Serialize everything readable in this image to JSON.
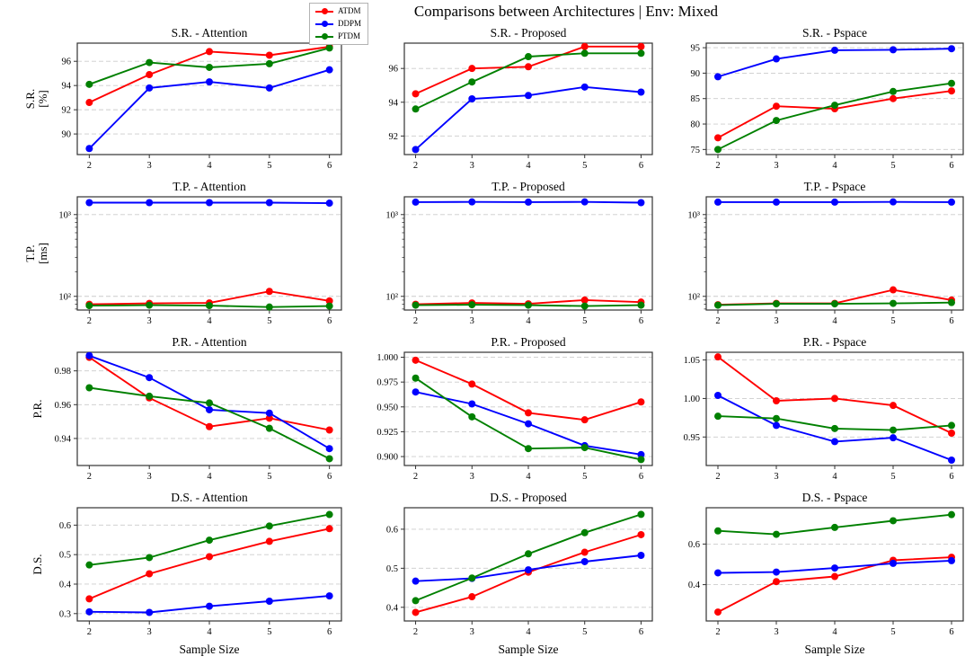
{
  "page": {
    "title": "Comparisons between Architectures | Env: Mixed"
  },
  "legend": {
    "position": "top-left-of-title",
    "items": [
      {
        "label": "ATDM",
        "color": "#ff0000"
      },
      {
        "label": "DDPM",
        "color": "#0000ff"
      },
      {
        "label": "PTDM",
        "color": "#008000"
      }
    ]
  },
  "style_colors": {
    "gridline": "#cccccc",
    "spine": "#333333",
    "background": "#ffffff"
  },
  "chart_data": [
    {
      "id": "sr-attention",
      "type": "line",
      "title": "S.R. - Attention",
      "row": 0,
      "col": 0,
      "ylabel_lines": [
        "S.R.",
        "[%]"
      ],
      "x": [
        2,
        3,
        4,
        5,
        6
      ],
      "x_tick_labels": [
        "2",
        "3",
        "4",
        "5",
        "6"
      ],
      "xlim": [
        1.8,
        6.2
      ],
      "ylog": false,
      "ylim": [
        88.3,
        97.5
      ],
      "grid": true,
      "yticks": [
        {
          "v": 90,
          "label": "90"
        },
        {
          "v": 92,
          "label": "92"
        },
        {
          "v": 94,
          "label": "94"
        },
        {
          "v": 96,
          "label": "96"
        }
      ],
      "series": [
        {
          "name": "ATDM",
          "values": [
            92.6,
            94.9,
            96.8,
            96.5,
            97.2
          ]
        },
        {
          "name": "DDPM",
          "values": [
            88.8,
            93.8,
            94.3,
            93.8,
            95.3
          ]
        },
        {
          "name": "PTDM",
          "values": [
            94.1,
            95.9,
            95.5,
            95.8,
            97.1
          ]
        }
      ]
    },
    {
      "id": "sr-proposed",
      "type": "line",
      "title": "S.R. - Proposed",
      "row": 0,
      "col": 1,
      "ylabel_lines": [],
      "x": [
        2,
        3,
        4,
        5,
        6
      ],
      "x_tick_labels": [
        "2",
        "3",
        "4",
        "5",
        "6"
      ],
      "xlim": [
        1.8,
        6.2
      ],
      "ylog": false,
      "ylim": [
        90.9,
        97.5
      ],
      "grid": true,
      "yticks": [
        {
          "v": 92,
          "label": "92"
        },
        {
          "v": 94,
          "label": "94"
        },
        {
          "v": 96,
          "label": "96"
        }
      ],
      "series": [
        {
          "name": "ATDM",
          "values": [
            94.5,
            96.0,
            96.1,
            97.3,
            97.3
          ]
        },
        {
          "name": "DDPM",
          "values": [
            91.2,
            94.2,
            94.4,
            94.9,
            94.6
          ]
        },
        {
          "name": "PTDM",
          "values": [
            93.6,
            95.2,
            96.7,
            96.9,
            96.9
          ]
        }
      ]
    },
    {
      "id": "sr-pspace",
      "type": "line",
      "title": "S.R. - Pspace",
      "row": 0,
      "col": 2,
      "ylabel_lines": [],
      "x": [
        2,
        3,
        4,
        5,
        6
      ],
      "x_tick_labels": [
        "2",
        "3",
        "4",
        "5",
        "6"
      ],
      "xlim": [
        1.8,
        6.2
      ],
      "ylog": false,
      "ylim": [
        74.0,
        95.9
      ],
      "grid": true,
      "yticks": [
        {
          "v": 75,
          "label": "75"
        },
        {
          "v": 80,
          "label": "80"
        },
        {
          "v": 85,
          "label": "85"
        },
        {
          "v": 90,
          "label": "90"
        },
        {
          "v": 95,
          "label": "95"
        }
      ],
      "series": [
        {
          "name": "ATDM",
          "values": [
            77.3,
            83.5,
            83.0,
            85.0,
            86.5
          ]
        },
        {
          "name": "DDPM",
          "values": [
            89.3,
            92.8,
            94.5,
            94.6,
            94.8
          ]
        },
        {
          "name": "PTDM",
          "values": [
            75.0,
            80.7,
            83.7,
            86.4,
            88.0
          ]
        }
      ]
    },
    {
      "id": "tp-attention",
      "type": "line",
      "title": "T.P. - Attention",
      "row": 1,
      "col": 0,
      "ylabel_lines": [
        "T.P.",
        "[ms]"
      ],
      "x": [
        2,
        3,
        4,
        5,
        6
      ],
      "x_tick_labels": [
        "2",
        "3",
        "4",
        "5",
        "6"
      ],
      "xlim": [
        1.8,
        6.2
      ],
      "ylog": true,
      "ylim": [
        68,
        1650
      ],
      "grid": true,
      "yticks": [
        {
          "v": 100,
          "label": "10²"
        },
        {
          "v": 1000,
          "label": "10³"
        }
      ],
      "minor_yticks": [
        70,
        80,
        90,
        200,
        300,
        400,
        500,
        600,
        700,
        800,
        900
      ],
      "series": [
        {
          "name": "ATDM",
          "values": [
            80,
            82,
            83,
            115,
            88
          ]
        },
        {
          "name": "DDPM",
          "values": [
            1400,
            1400,
            1400,
            1400,
            1380
          ]
        },
        {
          "name": "PTDM",
          "values": [
            77,
            78,
            77,
            74,
            76
          ]
        }
      ]
    },
    {
      "id": "tp-proposed",
      "type": "line",
      "title": "T.P. - Proposed",
      "row": 1,
      "col": 1,
      "ylabel_lines": [],
      "x": [
        2,
        3,
        4,
        5,
        6
      ],
      "x_tick_labels": [
        "2",
        "3",
        "4",
        "5",
        "6"
      ],
      "xlim": [
        1.8,
        6.2
      ],
      "ylog": true,
      "ylim": [
        68,
        1650
      ],
      "grid": true,
      "yticks": [
        {
          "v": 100,
          "label": "10²"
        },
        {
          "v": 1000,
          "label": "10³"
        }
      ],
      "minor_yticks": [
        70,
        80,
        90,
        200,
        300,
        400,
        500,
        600,
        700,
        800,
        900
      ],
      "series": [
        {
          "name": "ATDM",
          "values": [
            80,
            83,
            81,
            90,
            85
          ]
        },
        {
          "name": "DDPM",
          "values": [
            1420,
            1430,
            1420,
            1430,
            1400
          ]
        },
        {
          "name": "PTDM",
          "values": [
            78,
            79,
            78,
            76,
            78
          ]
        }
      ]
    },
    {
      "id": "tp-pspace",
      "type": "line",
      "title": "T.P. - Pspace",
      "row": 1,
      "col": 2,
      "ylabel_lines": [],
      "x": [
        2,
        3,
        4,
        5,
        6
      ],
      "x_tick_labels": [
        "2",
        "3",
        "4",
        "5",
        "6"
      ],
      "xlim": [
        1.8,
        6.2
      ],
      "ylog": true,
      "ylim": [
        68,
        1650
      ],
      "grid": true,
      "yticks": [
        {
          "v": 100,
          "label": "10²"
        },
        {
          "v": 1000,
          "label": "10³"
        }
      ],
      "minor_yticks": [
        70,
        80,
        90,
        200,
        300,
        400,
        500,
        600,
        700,
        800,
        900
      ],
      "series": [
        {
          "name": "ATDM",
          "values": [
            79,
            82,
            82,
            120,
            90
          ]
        },
        {
          "name": "DDPM",
          "values": [
            1420,
            1420,
            1420,
            1430,
            1420
          ]
        },
        {
          "name": "PTDM",
          "values": [
            78,
            81,
            81,
            82,
            84
          ]
        }
      ]
    },
    {
      "id": "pr-attention",
      "type": "line",
      "title": "P.R. - Attention",
      "row": 2,
      "col": 0,
      "ylabel_lines": [
        "P.R."
      ],
      "x": [
        2,
        3,
        4,
        5,
        6
      ],
      "x_tick_labels": [
        "2",
        "3",
        "4",
        "5",
        "6"
      ],
      "xlim": [
        1.8,
        6.2
      ],
      "ylog": false,
      "ylim": [
        0.924,
        0.991
      ],
      "grid": true,
      "yticks": [
        {
          "v": 0.94,
          "label": "0.94"
        },
        {
          "v": 0.96,
          "label": "0.96"
        },
        {
          "v": 0.98,
          "label": "0.98"
        }
      ],
      "series": [
        {
          "name": "ATDM",
          "values": [
            0.988,
            0.964,
            0.947,
            0.952,
            0.945
          ]
        },
        {
          "name": "DDPM",
          "values": [
            0.989,
            0.976,
            0.957,
            0.955,
            0.934
          ]
        },
        {
          "name": "PTDM",
          "values": [
            0.97,
            0.965,
            0.961,
            0.946,
            0.928
          ]
        }
      ]
    },
    {
      "id": "pr-proposed",
      "type": "line",
      "title": "P.R. - Proposed",
      "row": 2,
      "col": 1,
      "ylabel_lines": [],
      "x": [
        2,
        3,
        4,
        5,
        6
      ],
      "x_tick_labels": [
        "2",
        "3",
        "4",
        "5",
        "6"
      ],
      "xlim": [
        1.8,
        6.2
      ],
      "ylog": false,
      "ylim": [
        0.891,
        1.005
      ],
      "grid": true,
      "yticks": [
        {
          "v": 0.9,
          "label": "0.900"
        },
        {
          "v": 0.925,
          "label": "0.925"
        },
        {
          "v": 0.95,
          "label": "0.950"
        },
        {
          "v": 0.975,
          "label": "0.975"
        },
        {
          "v": 1.0,
          "label": "1.000"
        }
      ],
      "series": [
        {
          "name": "ATDM",
          "values": [
            0.997,
            0.973,
            0.944,
            0.937,
            0.955
          ]
        },
        {
          "name": "DDPM",
          "values": [
            0.965,
            0.953,
            0.933,
            0.911,
            0.902
          ]
        },
        {
          "name": "PTDM",
          "values": [
            0.979,
            0.94,
            0.908,
            0.909,
            0.897
          ]
        }
      ]
    },
    {
      "id": "pr-pspace",
      "type": "line",
      "title": "P.R. - Pspace",
      "row": 2,
      "col": 2,
      "ylabel_lines": [],
      "x": [
        2,
        3,
        4,
        5,
        6
      ],
      "x_tick_labels": [
        "2",
        "3",
        "4",
        "5",
        "6"
      ],
      "xlim": [
        1.8,
        6.2
      ],
      "ylog": false,
      "ylim": [
        0.913,
        1.06
      ],
      "grid": true,
      "yticks": [
        {
          "v": 0.95,
          "label": "0.95"
        },
        {
          "v": 1.0,
          "label": "1.00"
        },
        {
          "v": 1.05,
          "label": "1.05"
        }
      ],
      "series": [
        {
          "name": "ATDM",
          "values": [
            1.054,
            0.997,
            1.0,
            0.991,
            0.955
          ]
        },
        {
          "name": "DDPM",
          "values": [
            1.004,
            0.965,
            0.944,
            0.949,
            0.92
          ]
        },
        {
          "name": "PTDM",
          "values": [
            0.977,
            0.974,
            0.961,
            0.959,
            0.965
          ]
        }
      ]
    },
    {
      "id": "ds-attention",
      "type": "line",
      "title": "D.S. - Attention",
      "row": 3,
      "col": 0,
      "ylabel_lines": [
        "D.S."
      ],
      "xlabel": "Sample Size",
      "x": [
        2,
        3,
        4,
        5,
        6
      ],
      "x_tick_labels": [
        "2",
        "3",
        "4",
        "5",
        "6"
      ],
      "xlim": [
        1.8,
        6.2
      ],
      "ylog": false,
      "ylim": [
        0.275,
        0.659
      ],
      "grid": true,
      "yticks": [
        {
          "v": 0.3,
          "label": "0.3"
        },
        {
          "v": 0.4,
          "label": "0.4"
        },
        {
          "v": 0.5,
          "label": "0.5"
        },
        {
          "v": 0.6,
          "label": "0.6"
        }
      ],
      "series": [
        {
          "name": "ATDM",
          "values": [
            0.35,
            0.435,
            0.493,
            0.545,
            0.588
          ]
        },
        {
          "name": "DDPM",
          "values": [
            0.306,
            0.304,
            0.325,
            0.342,
            0.36
          ]
        },
        {
          "name": "PTDM",
          "values": [
            0.465,
            0.49,
            0.549,
            0.597,
            0.636
          ]
        }
      ]
    },
    {
      "id": "ds-proposed",
      "type": "line",
      "title": "D.S. - Proposed",
      "row": 3,
      "col": 1,
      "ylabel_lines": [],
      "xlabel": "Sample Size",
      "x": [
        2,
        3,
        4,
        5,
        6
      ],
      "x_tick_labels": [
        "2",
        "3",
        "4",
        "5",
        "6"
      ],
      "xlim": [
        1.8,
        6.2
      ],
      "ylog": false,
      "ylim": [
        0.365,
        0.655
      ],
      "grid": true,
      "yticks": [
        {
          "v": 0.4,
          "label": "0.4"
        },
        {
          "v": 0.5,
          "label": "0.5"
        },
        {
          "v": 0.6,
          "label": "0.6"
        }
      ],
      "series": [
        {
          "name": "ATDM",
          "values": [
            0.387,
            0.427,
            0.49,
            0.541,
            0.586
          ]
        },
        {
          "name": "DDPM",
          "values": [
            0.467,
            0.474,
            0.496,
            0.517,
            0.533
          ]
        },
        {
          "name": "PTDM",
          "values": [
            0.417,
            0.475,
            0.537,
            0.591,
            0.638
          ]
        }
      ]
    },
    {
      "id": "ds-pspace",
      "type": "line",
      "title": "D.S. - Pspace",
      "row": 3,
      "col": 2,
      "ylabel_lines": [],
      "xlabel": "Sample Size",
      "x": [
        2,
        3,
        4,
        5,
        6
      ],
      "x_tick_labels": [
        "2",
        "3",
        "4",
        "5",
        "6"
      ],
      "xlim": [
        1.8,
        6.2
      ],
      "ylog": false,
      "ylim": [
        0.221,
        0.779
      ],
      "grid": true,
      "yticks": [
        {
          "v": 0.4,
          "label": "0.4"
        },
        {
          "v": 0.6,
          "label": "0.6"
        }
      ],
      "series": [
        {
          "name": "ATDM",
          "values": [
            0.265,
            0.415,
            0.44,
            0.52,
            0.535
          ]
        },
        {
          "name": "DDPM",
          "values": [
            0.458,
            0.462,
            0.482,
            0.505,
            0.518
          ]
        },
        {
          "name": "PTDM",
          "values": [
            0.665,
            0.648,
            0.682,
            0.715,
            0.745
          ]
        }
      ]
    }
  ]
}
